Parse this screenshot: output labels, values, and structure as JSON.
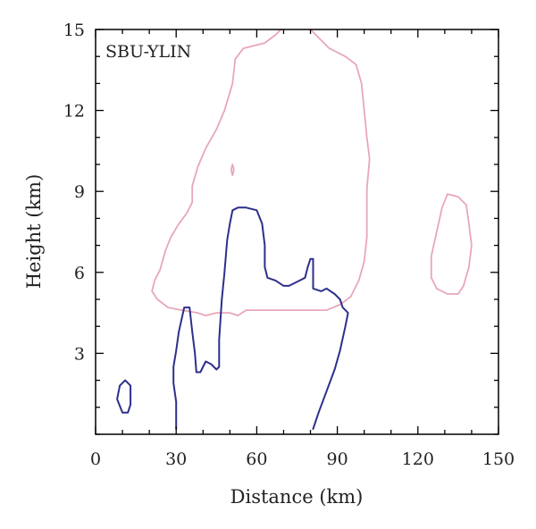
{
  "chart_data": {
    "type": "line",
    "title": "",
    "panel_label": "SBU-YLIN",
    "xlabel": "Distance (km)",
    "ylabel": "Height (km)",
    "xlim": [
      0,
      150
    ],
    "ylim": [
      0,
      15
    ],
    "xticks": [
      0,
      30,
      60,
      90,
      120,
      150
    ],
    "yticks": [
      3,
      6,
      9,
      12,
      15
    ],
    "x_minor_step": 10,
    "y_minor_step": 1,
    "grid": false,
    "series": [
      {
        "color": "#e8a7b8",
        "values": [
          [
            [
              69,
              15.0
            ],
            [
              67,
              14.8
            ],
            [
              63,
              14.5
            ],
            [
              55,
              14.3
            ],
            [
              52,
              13.9
            ],
            [
              51,
              13.0
            ],
            [
              48,
              12.0
            ],
            [
              45,
              11.3
            ],
            [
              41,
              10.6
            ],
            [
              38,
              9.9
            ],
            [
              36,
              9.2
            ],
            [
              36,
              8.6
            ],
            [
              34,
              8.2
            ],
            [
              31,
              7.8
            ],
            [
              28,
              7.3
            ],
            [
              26,
              6.8
            ],
            [
              24,
              6.1
            ],
            [
              22,
              5.7
            ],
            [
              21,
              5.3
            ],
            [
              23,
              5.0
            ],
            [
              27,
              4.7
            ],
            [
              32,
              4.6
            ],
            [
              38,
              4.5
            ],
            [
              41,
              4.4
            ],
            [
              45,
              4.5
            ],
            [
              50,
              4.5
            ],
            [
              53,
              4.4
            ],
            [
              56,
              4.6
            ],
            [
              60,
              4.6
            ],
            [
              66,
              4.6
            ],
            [
              73,
              4.6
            ],
            [
              80,
              4.6
            ],
            [
              86,
              4.6
            ],
            [
              91,
              4.8
            ],
            [
              95,
              5.1
            ],
            [
              98,
              5.7
            ],
            [
              100,
              6.4
            ],
            [
              101,
              7.3
            ],
            [
              101,
              8.2
            ],
            [
              101,
              9.1
            ],
            [
              102,
              10.2
            ],
            [
              101,
              11.0
            ],
            [
              100,
              12.0
            ],
            [
              99,
              13.0
            ],
            [
              97,
              13.7
            ],
            [
              93,
              14.0
            ],
            [
              87,
              14.3
            ],
            [
              83,
              14.7
            ],
            [
              80,
              15.0
            ]
          ],
          [
            [
              131,
              8.9
            ],
            [
              135,
              8.8
            ],
            [
              138,
              8.5
            ],
            [
              139,
              7.8
            ],
            [
              140,
              7.0
            ],
            [
              139,
              6.2
            ],
            [
              137,
              5.5
            ],
            [
              135,
              5.2
            ],
            [
              131,
              5.2
            ],
            [
              127,
              5.4
            ],
            [
              125,
              5.8
            ],
            [
              125,
              6.6
            ],
            [
              127,
              7.5
            ],
            [
              129,
              8.4
            ],
            [
              131,
              8.9
            ]
          ],
          [
            [
              50.5,
              9.8
            ],
            [
              51,
              10.0
            ],
            [
              51.5,
              9.8
            ],
            [
              51,
              9.6
            ],
            [
              50.5,
              9.8
            ]
          ]
        ]
      },
      {
        "color": "#2e2f8c",
        "values": [
          [
            [
              30,
              0.2
            ],
            [
              30,
              1.2
            ],
            [
              29,
              1.9
            ],
            [
              29,
              2.5
            ],
            [
              30,
              3.1
            ],
            [
              31,
              3.8
            ],
            [
              33,
              4.7
            ],
            [
              35,
              4.7
            ],
            [
              36,
              3.8
            ],
            [
              37,
              3.0
            ],
            [
              37.5,
              2.3
            ],
            [
              39,
              2.3
            ],
            [
              41,
              2.7
            ],
            [
              43,
              2.6
            ],
            [
              45,
              2.4
            ],
            [
              46,
              2.5
            ],
            [
              46,
              3.5
            ],
            [
              47,
              5.0
            ],
            [
              48,
              6.0
            ],
            [
              49,
              7.2
            ],
            [
              50,
              7.8
            ],
            [
              51,
              8.3
            ],
            [
              53,
              8.4
            ],
            [
              56,
              8.4
            ],
            [
              60,
              8.3
            ],
            [
              62,
              7.8
            ],
            [
              63,
              7.0
            ],
            [
              63,
              6.2
            ],
            [
              64,
              5.8
            ],
            [
              67,
              5.7
            ],
            [
              70,
              5.5
            ],
            [
              72,
              5.5
            ],
            [
              74,
              5.6
            ],
            [
              76,
              5.7
            ],
            [
              78,
              5.8
            ],
            [
              79,
              6.2
            ],
            [
              80,
              6.5
            ],
            [
              81,
              6.5
            ],
            [
              81,
              5.4
            ],
            [
              84,
              5.3
            ],
            [
              86,
              5.4
            ],
            [
              89,
              5.2
            ],
            [
              91,
              5.0
            ],
            [
              92,
              4.7
            ],
            [
              94,
              4.5
            ],
            [
              93,
              4.0
            ],
            [
              91,
              3.1
            ],
            [
              89,
              2.4
            ],
            [
              86,
              1.6
            ],
            [
              83,
              0.8
            ],
            [
              81,
              0.2
            ]
          ],
          [
            [
              8,
              1.3
            ],
            [
              9,
              1.8
            ],
            [
              11,
              2.0
            ],
            [
              13,
              1.8
            ],
            [
              13,
              1.1
            ],
            [
              12,
              0.8
            ],
            [
              10,
              0.8
            ],
            [
              8,
              1.3
            ]
          ]
        ]
      }
    ]
  }
}
